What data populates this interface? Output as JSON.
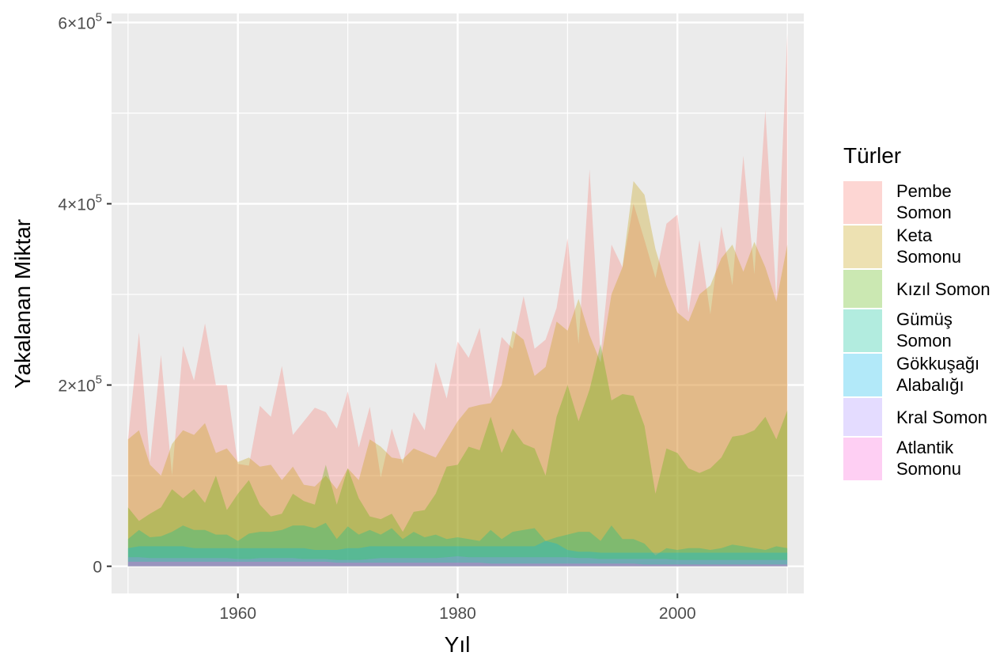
{
  "chart_data": {
    "type": "area",
    "xlabel": "Yıl",
    "ylabel": "Yakalanan Miktar",
    "xlim": [
      1948.5,
      2011.5
    ],
    "ylim": [
      -30000,
      610000
    ],
    "x_ticks": [
      1960,
      1980,
      2000
    ],
    "y_ticks": [
      {
        "value": 0,
        "mant": "0",
        "exp": ""
      },
      {
        "value": 200000,
        "mant": "2×10",
        "exp": "5"
      },
      {
        "value": 400000,
        "mant": "4×10",
        "exp": "5"
      },
      {
        "value": 600000,
        "mant": "6×10",
        "exp": "5"
      }
    ],
    "y_minor_ticks": [
      100000,
      300000,
      500000
    ],
    "x_minor_ticks": [
      1950,
      1970,
      1990,
      2010
    ],
    "grid": true,
    "stacked": false,
    "legend": {
      "title": "Türler",
      "position": "right"
    },
    "x": [
      1950,
      1951,
      1952,
      1953,
      1954,
      1955,
      1956,
      1957,
      1958,
      1959,
      1960,
      1961,
      1962,
      1963,
      1964,
      1965,
      1966,
      1967,
      1968,
      1969,
      1970,
      1971,
      1972,
      1973,
      1974,
      1975,
      1976,
      1977,
      1978,
      1979,
      1980,
      1981,
      1982,
      1983,
      1984,
      1985,
      1986,
      1987,
      1988,
      1989,
      1990,
      1991,
      1992,
      1993,
      1994,
      1995,
      1996,
      1997,
      1998,
      1999,
      2000,
      2001,
      2002,
      2003,
      2004,
      2005,
      2006,
      2007,
      2008,
      2009,
      2010
    ],
    "series": [
      {
        "name": "Pembe Somon",
        "label_lines": [
          "Pembe",
          "Somon"
        ],
        "color": "#F8766D",
        "values": [
          140000,
          258000,
          115000,
          233000,
          100000,
          243000,
          205000,
          268000,
          200000,
          200000,
          113000,
          111000,
          177000,
          165000,
          221000,
          145000,
          160000,
          175000,
          170000,
          152000,
          193000,
          131000,
          176000,
          98000,
          152000,
          113000,
          170000,
          150000,
          225000,
          185000,
          248000,
          230000,
          263000,
          185000,
          253000,
          240000,
          298000,
          240000,
          250000,
          285000,
          362000,
          245000,
          438000,
          232000,
          355000,
          330000,
          400000,
          360000,
          318000,
          378000,
          388000,
          280000,
          360000,
          278000,
          375000,
          310000,
          453000,
          322000,
          503000,
          295000,
          588000
        ]
      },
      {
        "name": "Keta Somonu",
        "label_lines": [
          "Keta",
          "Somonu"
        ],
        "color": "#C49A00",
        "values": [
          140000,
          150000,
          112000,
          100000,
          135000,
          150000,
          145000,
          158000,
          125000,
          130000,
          115000,
          120000,
          110000,
          112000,
          95000,
          110000,
          90000,
          88000,
          100000,
          85000,
          108000,
          95000,
          140000,
          132000,
          120000,
          118000,
          130000,
          125000,
          120000,
          140000,
          160000,
          175000,
          178000,
          180000,
          200000,
          260000,
          250000,
          210000,
          220000,
          270000,
          260000,
          295000,
          255000,
          225000,
          300000,
          330000,
          425000,
          410000,
          350000,
          310000,
          280000,
          270000,
          300000,
          310000,
          340000,
          355000,
          325000,
          358000,
          330000,
          292000,
          355000
        ]
      },
      {
        "name": "Kızıl Somon",
        "label_lines": [
          "Kızıl Somon"
        ],
        "color": "#53B400",
        "values": [
          65000,
          50000,
          58000,
          65000,
          85000,
          75000,
          85000,
          70000,
          100000,
          62000,
          80000,
          95000,
          68000,
          55000,
          58000,
          80000,
          72000,
          68000,
          112000,
          68000,
          108000,
          75000,
          55000,
          52000,
          58000,
          38000,
          60000,
          62000,
          80000,
          110000,
          112000,
          132000,
          128000,
          165000,
          125000,
          152000,
          135000,
          130000,
          100000,
          165000,
          200000,
          160000,
          195000,
          245000,
          183000,
          190000,
          188000,
          155000,
          80000,
          130000,
          125000,
          108000,
          103000,
          108000,
          120000,
          143000,
          145000,
          150000,
          165000,
          140000,
          172000
        ]
      },
      {
        "name": "Gümüş Somon",
        "label_lines": [
          "Gümüş",
          "Somon"
        ],
        "color": "#00C094",
        "values": [
          30000,
          40000,
          32000,
          33000,
          38000,
          45000,
          40000,
          40000,
          35000,
          35000,
          28000,
          36000,
          38000,
          38000,
          40000,
          45000,
          45000,
          42000,
          48000,
          30000,
          44000,
          35000,
          40000,
          35000,
          42000,
          30000,
          38000,
          32000,
          35000,
          30000,
          32000,
          30000,
          28000,
          40000,
          30000,
          38000,
          40000,
          42000,
          28000,
          32000,
          35000,
          38000,
          38000,
          28000,
          45000,
          30000,
          30000,
          25000,
          12000,
          20000,
          18000,
          20000,
          20000,
          18000,
          20000,
          24000,
          22000,
          20000,
          18000,
          22000,
          20000
        ]
      },
      {
        "name": "Gökkuşağı Alabalığı",
        "label_lines": [
          "Gökkuşağı",
          "Alabalığı"
        ],
        "color": "#00B6EB",
        "values": [
          20000,
          22000,
          22000,
          22000,
          22000,
          22000,
          20000,
          20000,
          20000,
          20000,
          20000,
          20000,
          20000,
          20000,
          20000,
          20000,
          20000,
          18000,
          18000,
          18000,
          20000,
          20000,
          22000,
          22000,
          22000,
          22000,
          22000,
          22000,
          22000,
          22000,
          22000,
          22000,
          22000,
          22000,
          22000,
          22000,
          22000,
          22000,
          28000,
          25000,
          18000,
          16000,
          16000,
          15000,
          15000,
          15000,
          15000,
          15000,
          15000,
          15000,
          15000,
          15000,
          15000,
          15000,
          15000,
          15000,
          15000,
          15000,
          15000,
          15000,
          15000
        ]
      },
      {
        "name": "Kral Somon",
        "label_lines": [
          "Kral Somon"
        ],
        "color": "#A58AFF",
        "values": [
          10000,
          10000,
          9000,
          9000,
          9000,
          9000,
          9000,
          9000,
          9000,
          9000,
          8000,
          8000,
          9000,
          9000,
          9000,
          9000,
          8000,
          8000,
          8000,
          7000,
          7000,
          7000,
          8000,
          9000,
          9000,
          9000,
          9000,
          9000,
          9000,
          10000,
          11000,
          10000,
          10000,
          10000,
          10000,
          10000,
          10000,
          10000,
          10000,
          10000,
          10000,
          9000,
          9000,
          8000,
          8000,
          8000,
          8000,
          8000,
          8000,
          8000,
          7000,
          7000,
          7000,
          7000,
          7000,
          7000,
          7000,
          7000,
          7000,
          7000,
          7000
        ]
      },
      {
        "name": "Atlantik Somonu",
        "label_lines": [
          "Atlantik",
          "Somonu"
        ],
        "color": "#FB61D7",
        "values": [
          5000,
          5000,
          5000,
          5000,
          5000,
          5000,
          5000,
          5000,
          5000,
          5000,
          5000,
          5000,
          5000,
          5000,
          5000,
          5000,
          5000,
          5000,
          5000,
          4000,
          4000,
          4000,
          4000,
          4000,
          4000,
          4000,
          4000,
          4000,
          4000,
          4000,
          4000,
          4000,
          4000,
          3000,
          3000,
          3000,
          3000,
          3000,
          3000,
          3000,
          3000,
          3000,
          3000,
          3000,
          3000,
          3000,
          3000,
          2000,
          2000,
          2000,
          2000,
          2000,
          2000,
          2000,
          2000,
          2000,
          2000,
          2000,
          2000,
          2000,
          2000
        ]
      }
    ]
  }
}
